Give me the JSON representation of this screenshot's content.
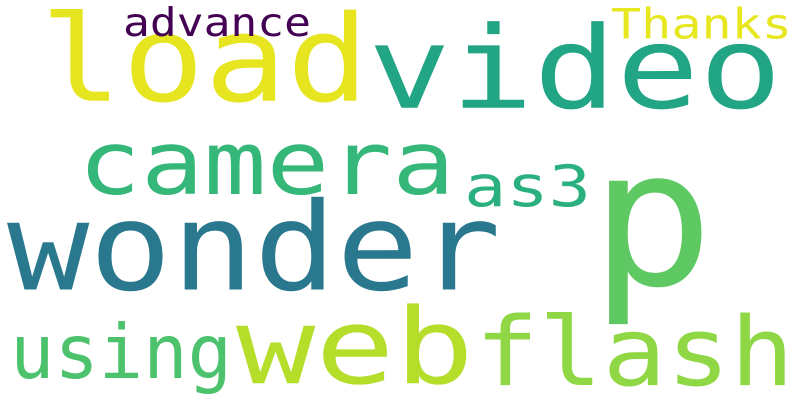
{
  "cloud": {
    "words": [
      {
        "text": "load",
        "color": "#e6e520"
      },
      {
        "text": "video",
        "color": "#21a585"
      },
      {
        "text": "p",
        "color": "#5ec962"
      },
      {
        "text": "wonder",
        "color": "#2a788e"
      },
      {
        "text": "web",
        "color": "#b5de2b"
      },
      {
        "text": "flash",
        "color": "#8fd744"
      },
      {
        "text": "camera",
        "color": "#35b779"
      },
      {
        "text": "using",
        "color": "#4cc26c"
      },
      {
        "text": "as3",
        "color": "#2ab07f"
      },
      {
        "text": "Thanks",
        "color": "#e6e71f"
      },
      {
        "text": "advance",
        "color": "#440154"
      }
    ]
  }
}
